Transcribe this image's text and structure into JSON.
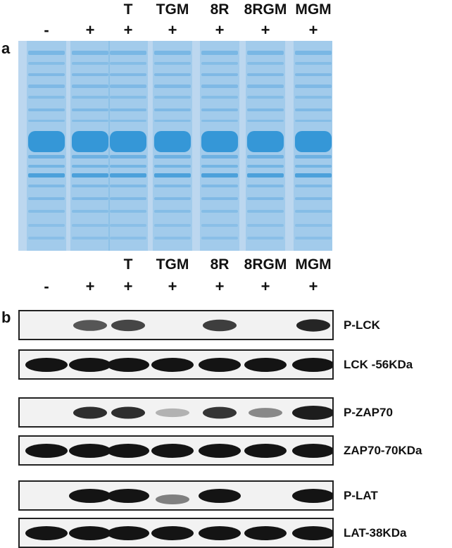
{
  "panels": {
    "a": {
      "letter": "a"
    },
    "b": {
      "letter": "b"
    }
  },
  "lanes": {
    "labels": [
      "",
      "",
      "T",
      "TGM",
      "8R",
      "8RGM",
      "MGM"
    ],
    "signs": [
      "-",
      "+",
      "+",
      "+",
      "+",
      "+",
      "+"
    ]
  },
  "blots": [
    {
      "label": "P-LCK",
      "intensities": [
        0,
        0.6,
        0.7,
        0,
        0.75,
        0,
        0.9
      ]
    },
    {
      "label": "LCK -56KDa",
      "intensities": [
        1,
        1,
        1,
        1,
        1,
        1,
        1
      ]
    },
    {
      "label": "P-ZAP70",
      "intensities": [
        0,
        0.85,
        0.85,
        0.05,
        0.8,
        0.3,
        0.95
      ]
    },
    {
      "label": "ZAP70-70KDa",
      "intensities": [
        1,
        1,
        1,
        1,
        1,
        1,
        1
      ]
    },
    {
      "label": "P-LAT",
      "intensities": [
        0,
        1,
        1,
        0.35,
        1,
        0,
        1
      ]
    },
    {
      "label": "LAT-38KDa",
      "intensities": [
        1,
        1,
        1,
        1,
        1,
        1,
        1
      ]
    }
  ],
  "colors": {
    "gel_background": "#bcd7ef",
    "gel_band": "#2f93d6",
    "blot_band": "#141414"
  }
}
